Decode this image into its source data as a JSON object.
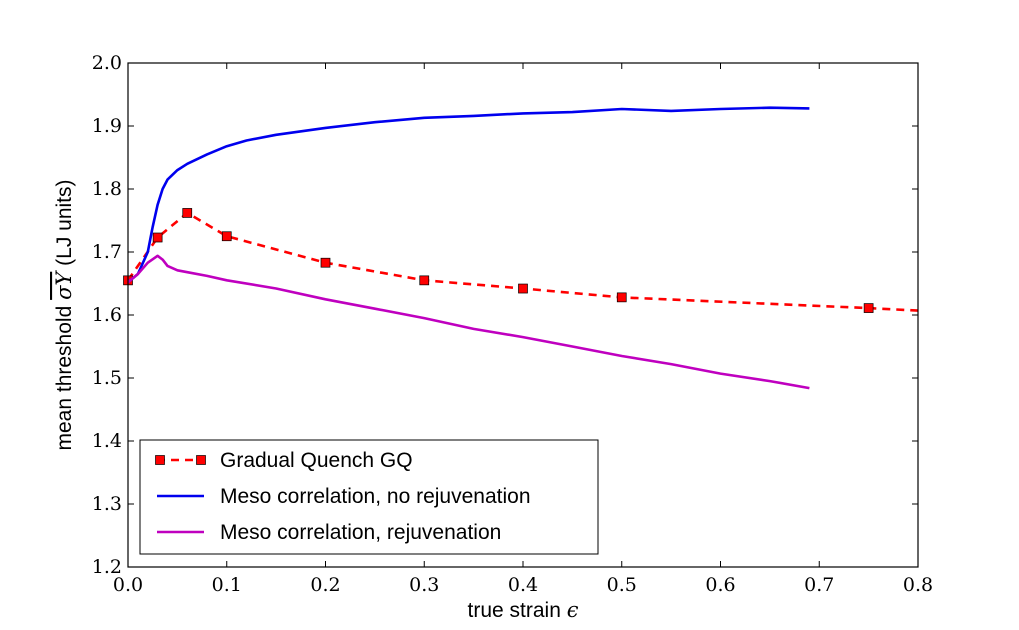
{
  "chart_data": {
    "type": "line",
    "title": "",
    "xlabel": "true strain",
    "xlabel_symbol": "ϵ",
    "ylabel": "mean threshold",
    "ylabel_symbol": "σY",
    "ylabel_units": "(LJ units)",
    "xlim": [
      0.0,
      0.8
    ],
    "ylim": [
      1.2,
      2.0
    ],
    "x_ticks": [
      0.0,
      0.1,
      0.2,
      0.3,
      0.4,
      0.5,
      0.6,
      0.7,
      0.8
    ],
    "x_tick_labels": [
      "0.0",
      "0.1",
      "0.2",
      "0.3",
      "0.4",
      "0.5",
      "0.6",
      "0.7",
      "0.8"
    ],
    "y_ticks": [
      1.2,
      1.3,
      1.4,
      1.5,
      1.6,
      1.7,
      1.8,
      1.9,
      2.0
    ],
    "y_tick_labels": [
      "1.2",
      "1.3",
      "1.4",
      "1.5",
      "1.6",
      "1.7",
      "1.8",
      "1.9",
      "2.0"
    ],
    "grid": false,
    "legend_position": "bottom-left",
    "series": [
      {
        "name": "Gradual Quench GQ",
        "color": "#ff0000",
        "style": "dashed-with-square-markers",
        "x": [
          0.0,
          0.03,
          0.06,
          0.1,
          0.2,
          0.3,
          0.4,
          0.5,
          0.75,
          0.8
        ],
        "y": [
          1.655,
          1.723,
          1.762,
          1.725,
          1.683,
          1.655,
          1.642,
          1.628,
          1.611,
          1.607
        ],
        "marker_x": [
          0.0,
          0.03,
          0.06,
          0.1,
          0.2,
          0.3,
          0.4,
          0.5,
          0.75
        ]
      },
      {
        "name": "Meso correlation, no rejuvenation",
        "color": "#0000ee",
        "style": "solid",
        "x": [
          0.0,
          0.01,
          0.02,
          0.025,
          0.03,
          0.035,
          0.04,
          0.05,
          0.06,
          0.08,
          0.1,
          0.12,
          0.15,
          0.2,
          0.25,
          0.3,
          0.35,
          0.4,
          0.45,
          0.5,
          0.55,
          0.6,
          0.65,
          0.69
        ],
        "y": [
          1.652,
          1.665,
          1.7,
          1.74,
          1.775,
          1.8,
          1.815,
          1.83,
          1.84,
          1.855,
          1.868,
          1.877,
          1.886,
          1.897,
          1.906,
          1.913,
          1.916,
          1.92,
          1.922,
          1.927,
          1.924,
          1.927,
          1.929,
          1.928
        ]
      },
      {
        "name": "Meso correlation, rejuvenation",
        "color": "#bf00bf",
        "style": "solid",
        "x": [
          0.0,
          0.01,
          0.02,
          0.03,
          0.035,
          0.04,
          0.05,
          0.06,
          0.08,
          0.1,
          0.15,
          0.2,
          0.25,
          0.3,
          0.35,
          0.4,
          0.45,
          0.5,
          0.55,
          0.6,
          0.65,
          0.69
        ],
        "y": [
          1.652,
          1.665,
          1.683,
          1.694,
          1.688,
          1.678,
          1.671,
          1.668,
          1.662,
          1.655,
          1.642,
          1.625,
          1.61,
          1.595,
          1.578,
          1.565,
          1.55,
          1.535,
          1.522,
          1.507,
          1.495,
          1.484
        ]
      }
    ]
  }
}
